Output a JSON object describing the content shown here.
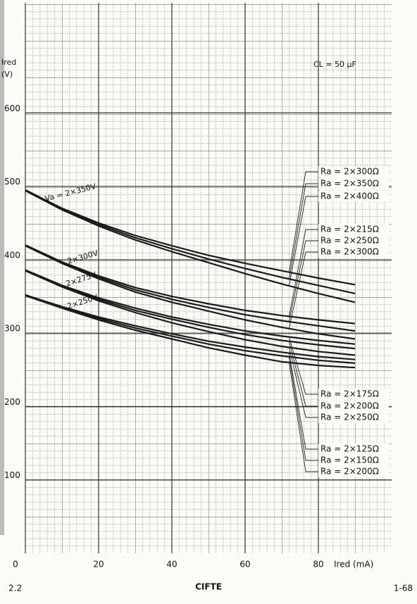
{
  "chart_data": {
    "type": "line",
    "y_label": "Ired (V)",
    "x_label": "Ired (mA)",
    "annotations": [
      "CL = 50 μF",
      "Va = 2×350V",
      "2×300V",
      "2×275V",
      "2×250V"
    ],
    "x": [
      0,
      10,
      20,
      30,
      40,
      50,
      60,
      70,
      80,
      90
    ],
    "series": [
      {
        "name": "Ra = 2×300Ω",
        "color": "#1a1a1a",
        "values": [
          495,
          470,
          450,
          433,
          419,
          406,
          395,
          385,
          375,
          366
        ]
      },
      {
        "name": "Ra = 2×350Ω",
        "color": "#1a1a1a",
        "values": [
          495,
          469,
          448,
          430,
          415,
          401,
          388,
          376,
          365,
          354
        ]
      },
      {
        "name": "Ra = 2×400Ω",
        "color": "#1a1a1a",
        "values": [
          494,
          468,
          446,
          427,
          411,
          396,
          381,
          367,
          354,
          342
        ]
      },
      {
        "name": "Ra = 2×215Ω",
        "color": "#1a1a1a",
        "values": [
          420,
          397,
          378,
          362,
          350,
          340,
          331,
          324,
          318,
          313
        ]
      },
      {
        "name": "Ra = 2×250Ω",
        "color": "#1a1a1a",
        "values": [
          420,
          396,
          376,
          359,
          346,
          335,
          325,
          317,
          310,
          303
        ]
      },
      {
        "name": "Ra = 2×300Ω",
        "color": "#1a1a1a",
        "values": [
          419,
          395,
          374,
          356,
          342,
          330,
          318,
          308,
          299,
          292
        ]
      },
      {
        "name": "Ra = 2×175Ω",
        "color": "#1a1a1a",
        "values": [
          386,
          365,
          348,
          334,
          322,
          312,
          303,
          296,
          290,
          285
        ]
      },
      {
        "name": "Ra = 2×200Ω",
        "color": "#1a1a1a",
        "values": [
          386,
          364,
          346,
          331,
          319,
          308,
          298,
          290,
          284,
          279
        ]
      },
      {
        "name": "Ra = 2×250Ω",
        "color": "#1a1a1a",
        "values": [
          385,
          363,
          344,
          328,
          314,
          302,
          291,
          282,
          275,
          270
        ]
      },
      {
        "name": "Ra = 2×125Ω",
        "color": "#1a1a1a",
        "values": [
          352,
          336,
          322,
          310,
          299,
          289,
          281,
          274,
          268,
          264
        ]
      },
      {
        "name": "Ra = 2×150Ω",
        "color": "#1a1a1a",
        "values": [
          352,
          335,
          320,
          307,
          296,
          285,
          276,
          269,
          263,
          259
        ]
      },
      {
        "name": "Ra = 2×200Ω",
        "color": "#1a1a1a",
        "values": [
          351,
          334,
          318,
          304,
          292,
          280,
          270,
          261,
          256,
          253
        ]
      }
    ],
    "xlim": [
      0,
      100
    ],
    "ylim": [
      0,
      750
    ],
    "xticks": [
      0,
      20,
      40,
      60,
      80
    ],
    "yticks": [
      100,
      200,
      300,
      400,
      500,
      600
    ],
    "grid": true,
    "legend_position": "right"
  },
  "footer": {
    "left": "2.2",
    "center": "CIFTE",
    "right": "1-68"
  }
}
